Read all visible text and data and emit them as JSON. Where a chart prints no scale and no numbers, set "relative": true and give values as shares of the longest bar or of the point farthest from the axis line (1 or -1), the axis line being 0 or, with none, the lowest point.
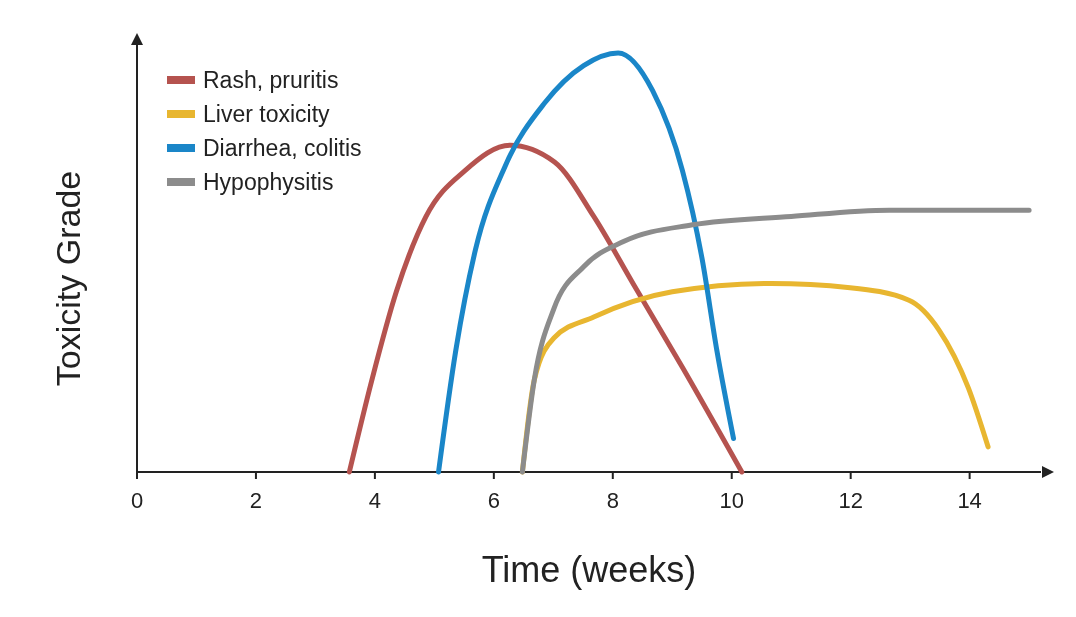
{
  "chart_data": {
    "type": "line",
    "relative": true,
    "xlabel": "Time (weeks)",
    "ylabel": "Toxicity Grade",
    "xlim": [
      0,
      15.2
    ],
    "xticks": [
      0,
      2,
      4,
      6,
      8,
      10,
      12,
      14
    ],
    "legend": "top left",
    "marker": "none",
    "line_style": "solid",
    "grid": false,
    "series": [
      {
        "name": "Rash, pruritis",
        "color": "#b5534f",
        "x": [
          3.57,
          3.95,
          4.36,
          4.86,
          5.52,
          6.27,
          7.02,
          7.68,
          8.34,
          9.17,
          10.17
        ],
        "values": [
          0,
          0.22,
          0.43,
          0.61,
          0.72,
          0.78,
          0.74,
          0.61,
          0.45,
          0.25,
          0
        ]
      },
      {
        "name": "Liver toxicity",
        "color": "#e8b630",
        "x": [
          6.48,
          6.68,
          7.01,
          7.68,
          9.0,
          10.66,
          11.99,
          12.98,
          13.48,
          13.98,
          14.31
        ],
        "values": [
          0,
          0.22,
          0.32,
          0.37,
          0.43,
          0.45,
          0.44,
          0.41,
          0.34,
          0.2,
          0.06
        ]
      },
      {
        "name": "Diarrhea, colitis",
        "color": "#1a86c8",
        "x": [
          5.07,
          5.36,
          5.69,
          6.19,
          6.85,
          7.51,
          8.09,
          8.67,
          9.17,
          9.5,
          9.75,
          10.03
        ],
        "values": [
          0,
          0.29,
          0.53,
          0.73,
          0.88,
          0.97,
          1,
          0.91,
          0.72,
          0.51,
          0.29,
          0.08
        ]
      },
      {
        "name": "Hypophysitis",
        "color": "#8c8c8c",
        "x": [
          6.48,
          6.68,
          7.01,
          7.51,
          8.18,
          9.34,
          11.0,
          12.65,
          15.0
        ],
        "values": [
          0,
          0.22,
          0.39,
          0.49,
          0.55,
          0.59,
          0.61,
          0.625,
          0.625
        ]
      }
    ]
  }
}
